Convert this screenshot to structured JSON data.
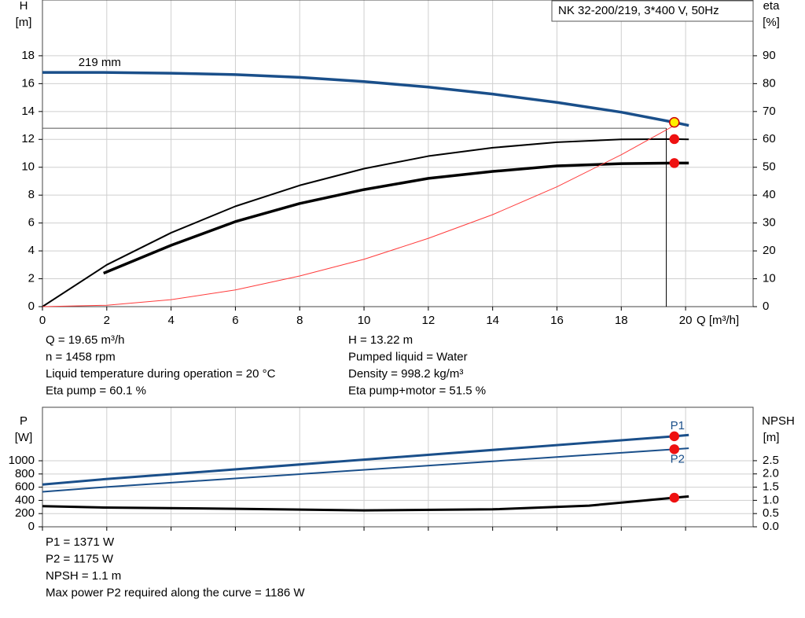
{
  "chart_data": [
    {
      "type": "line",
      "legend_text": "NK 32-200/219, 3*400 V, 50Hz",
      "ylabel": "H",
      "yunit": "[m]",
      "y2label": "eta",
      "y2unit": "[%]",
      "xlabel": "Q [m³/h]",
      "xlim": [
        0,
        22.1
      ],
      "xticks": [
        0,
        2,
        4,
        6,
        8,
        10,
        12,
        14,
        16,
        18,
        20
      ],
      "ylim": [
        0,
        22
      ],
      "yticks": [
        0,
        2,
        4,
        6,
        8,
        10,
        12,
        14,
        16,
        18
      ],
      "y2lim": [
        0,
        110
      ],
      "y2ticks": [
        0,
        10,
        20,
        30,
        40,
        50,
        60,
        70,
        80,
        90
      ],
      "grid": true,
      "annotation": "219 mm",
      "reference_lines": {
        "x": 19.4,
        "y": 12.8
      },
      "series": [
        {
          "color": "#1a4f8a",
          "width": 3.5,
          "axis": "y",
          "x": [
            0,
            1.9,
            4,
            6,
            8,
            10,
            12,
            14,
            16,
            18,
            19.65,
            20.1
          ],
          "values": [
            16.8,
            16.8,
            16.75,
            16.65,
            16.45,
            16.15,
            15.75,
            15.25,
            14.65,
            13.95,
            13.22,
            13.0
          ]
        },
        {
          "color": "#000000",
          "width": 2,
          "axis": "y2",
          "x": [
            0,
            2,
            4,
            6,
            8,
            10,
            12,
            14,
            16,
            18,
            19.65,
            20.1
          ],
          "values": [
            0,
            15,
            26.5,
            36,
            43.5,
            49.5,
            54,
            57,
            59,
            60,
            60.1,
            60
          ]
        },
        {
          "color": "#000000",
          "width": 3.5,
          "axis": "y2",
          "x": [
            1.9,
            4,
            6,
            8,
            10,
            12,
            14,
            16,
            18,
            19.65,
            20.1
          ],
          "values": [
            12,
            22,
            30.5,
            37,
            42,
            46,
            48.5,
            50.5,
            51.3,
            51.5,
            51.5
          ]
        },
        {
          "color": "#ff3b3b",
          "width": 1,
          "axis": "y",
          "x": [
            0,
            2,
            4,
            6,
            8,
            10,
            12,
            14,
            16,
            18,
            19.65
          ],
          "values": [
            0,
            0.1,
            0.5,
            1.2,
            2.2,
            3.4,
            4.9,
            6.6,
            8.6,
            10.9,
            13.0
          ]
        }
      ],
      "markers": [
        {
          "x": 19.65,
          "y": 13.22,
          "axis": "y",
          "color": "#ffee00"
        },
        {
          "x": 19.65,
          "y": 60.1,
          "axis": "y2",
          "color": "#ee1111"
        },
        {
          "x": 19.65,
          "y": 51.5,
          "axis": "y2",
          "color": "#ee1111"
        }
      ],
      "info_left": [
        "Q = 19.65 m³/h",
        "n = 1458 rpm",
        "Liquid temperature during operation = 20 °C",
        "Eta pump = 60.1 %"
      ],
      "info_right": [
        "H = 13.22 m",
        "Pumped liquid = Water",
        "Density = 998.2 kg/m³",
        "Eta pump+motor = 51.5 %"
      ]
    },
    {
      "type": "line",
      "ylabel": "P",
      "yunit": "[W]",
      "y2label": "NPSH",
      "y2unit": "[m]",
      "xlim": [
        0,
        22.1
      ],
      "xticks": [
        0,
        2,
        4,
        6,
        8,
        10,
        12,
        14,
        16,
        18,
        20
      ],
      "ylim": [
        0,
        1810
      ],
      "yticks": [
        0,
        200,
        400,
        600,
        800,
        1000
      ],
      "y2lim": [
        0,
        4.52
      ],
      "y2ticks": [
        {
          "value": 0,
          "label": "0.0"
        },
        0.5,
        {
          "value": 1,
          "label": "1.0"
        },
        1.5,
        {
          "value": 2,
          "label": "2.0"
        },
        2.5
      ],
      "grid": true,
      "series": [
        {
          "name": "P1",
          "color": "#1a4f8a",
          "width": 3,
          "axis": "y",
          "x": [
            0,
            1.9,
            19.65,
            20.1
          ],
          "values": [
            640,
            720,
            1371,
            1390
          ]
        },
        {
          "name": "P2",
          "color": "#1a4f8a",
          "width": 2,
          "axis": "y",
          "x": [
            0,
            1.9,
            19.65,
            20.1
          ],
          "values": [
            530,
            600,
            1175,
            1190
          ]
        },
        {
          "color": "#000000",
          "width": 3,
          "axis": "y2",
          "x": [
            0,
            1.9,
            6,
            10,
            14,
            17,
            19.65,
            20.1
          ],
          "values": [
            0.78,
            0.73,
            0.68,
            0.62,
            0.66,
            0.8,
            1.1,
            1.15
          ]
        }
      ],
      "markers": [
        {
          "x": 19.65,
          "y": 1371,
          "axis": "y",
          "color": "#ee1111"
        },
        {
          "x": 19.65,
          "y": 1175,
          "axis": "y",
          "color": "#ee1111"
        },
        {
          "x": 19.65,
          "y": 1.1,
          "axis": "y2",
          "color": "#ee1111"
        }
      ],
      "info": [
        "P1 = 1371 W",
        "P2 = 1175 W",
        "NPSH = 1.1 m",
        "Max power P2 required along the curve = 1186 W"
      ]
    }
  ]
}
